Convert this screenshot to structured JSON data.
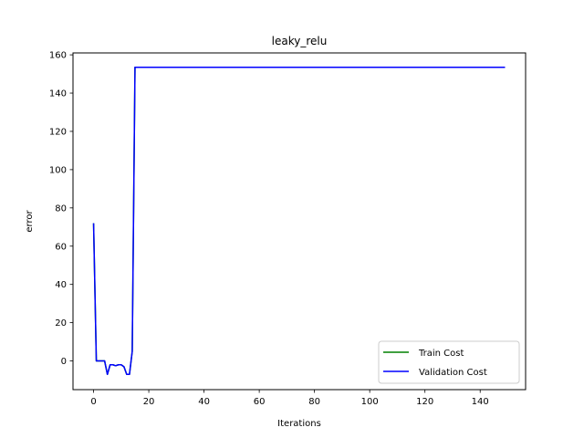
{
  "chart_data": {
    "type": "line",
    "title": "leaky_relu",
    "xlabel": "Iterations",
    "ylabel": "error",
    "xlim": [
      -7.45,
      156.45
    ],
    "ylim": [
      -15.0,
      161.0
    ],
    "xticks": [
      0,
      20,
      40,
      60,
      80,
      100,
      120,
      140
    ],
    "yticks": [
      0,
      20,
      40,
      60,
      80,
      100,
      120,
      140,
      160
    ],
    "grid": false,
    "legend_position": "lower-right",
    "series": [
      {
        "name": "Train Cost",
        "color": "#008000",
        "x": [
          0,
          1,
          2,
          3,
          4,
          5,
          6,
          7,
          8,
          9,
          10,
          11,
          12,
          13,
          14,
          15,
          149
        ],
        "y": [
          72,
          0,
          0,
          0,
          0,
          -7,
          -2,
          -2,
          -2.5,
          -2,
          -2,
          -3,
          -7,
          -7,
          5,
          153.5,
          153.5
        ]
      },
      {
        "name": "Validation Cost",
        "color": "#0000ff",
        "x": [
          0,
          1,
          2,
          3,
          4,
          5,
          6,
          7,
          8,
          9,
          10,
          11,
          12,
          13,
          14,
          15,
          149
        ],
        "y": [
          72,
          0,
          0,
          0,
          0,
          -7,
          -2,
          -2,
          -2.5,
          -2,
          -2,
          -3,
          -7,
          -7,
          5,
          153.5,
          153.5
        ]
      }
    ]
  }
}
